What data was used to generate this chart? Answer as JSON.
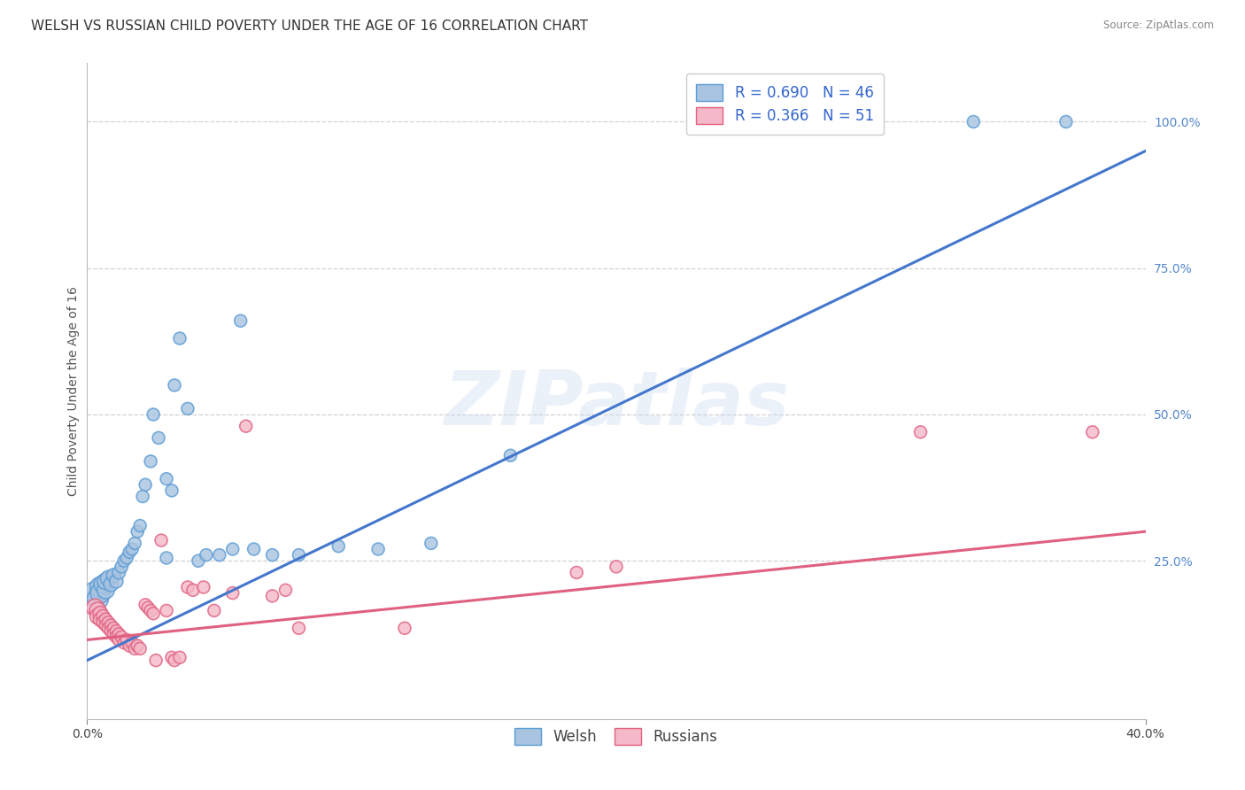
{
  "title": "WELSH VS RUSSIAN CHILD POVERTY UNDER THE AGE OF 16 CORRELATION CHART",
  "source": "Source: ZipAtlas.com",
  "ylabel": "Child Poverty Under the Age of 16",
  "xmin": 0.0,
  "xmax": 0.4,
  "ymin": -0.02,
  "ymax": 1.1,
  "xtick_positions": [
    0.0,
    0.4
  ],
  "xtick_labels": [
    "0.0%",
    "40.0%"
  ],
  "ytick_positions": [
    0.25,
    0.5,
    0.75,
    1.0
  ],
  "ytick_labels": [
    "25.0%",
    "50.0%",
    "75.0%",
    "100.0%"
  ],
  "welsh_color": "#a8c4e0",
  "welsh_edge_color": "#5b9bd5",
  "russian_color": "#f4b8c8",
  "russian_edge_color": "#e06080",
  "welsh_line_color": "#4477cc",
  "russian_line_color": "#e06080",
  "welsh_R": 0.69,
  "welsh_N": 46,
  "russian_R": 0.366,
  "russian_N": 51,
  "watermark": "ZIPatlas",
  "welsh_scatter": [
    [
      0.003,
      0.195
    ],
    [
      0.004,
      0.185
    ],
    [
      0.005,
      0.205
    ],
    [
      0.005,
      0.195
    ],
    [
      0.006,
      0.21
    ],
    [
      0.007,
      0.2
    ],
    [
      0.007,
      0.215
    ],
    [
      0.008,
      0.22
    ],
    [
      0.009,
      0.21
    ],
    [
      0.01,
      0.225
    ],
    [
      0.011,
      0.215
    ],
    [
      0.012,
      0.23
    ],
    [
      0.013,
      0.24
    ],
    [
      0.014,
      0.25
    ],
    [
      0.015,
      0.255
    ],
    [
      0.016,
      0.265
    ],
    [
      0.017,
      0.27
    ],
    [
      0.018,
      0.28
    ],
    [
      0.019,
      0.3
    ],
    [
      0.02,
      0.31
    ],
    [
      0.021,
      0.36
    ],
    [
      0.022,
      0.38
    ],
    [
      0.024,
      0.42
    ],
    [
      0.025,
      0.5
    ],
    [
      0.027,
      0.46
    ],
    [
      0.03,
      0.39
    ],
    [
      0.03,
      0.255
    ],
    [
      0.032,
      0.37
    ],
    [
      0.033,
      0.55
    ],
    [
      0.035,
      0.63
    ],
    [
      0.038,
      0.51
    ],
    [
      0.042,
      0.25
    ],
    [
      0.045,
      0.26
    ],
    [
      0.05,
      0.26
    ],
    [
      0.055,
      0.27
    ],
    [
      0.058,
      0.66
    ],
    [
      0.063,
      0.27
    ],
    [
      0.07,
      0.26
    ],
    [
      0.08,
      0.26
    ],
    [
      0.095,
      0.275
    ],
    [
      0.11,
      0.27
    ],
    [
      0.13,
      0.28
    ],
    [
      0.16,
      0.43
    ],
    [
      0.295,
      1.0
    ],
    [
      0.335,
      1.0
    ],
    [
      0.37,
      1.0
    ]
  ],
  "welsh_sizes": [
    350,
    300,
    280,
    260,
    220,
    200,
    180,
    160,
    140,
    130,
    120,
    110,
    105,
    100,
    100,
    100,
    100,
    100,
    100,
    100,
    100,
    100,
    100,
    100,
    100,
    100,
    100,
    100,
    100,
    100,
    100,
    100,
    100,
    100,
    100,
    100,
    100,
    100,
    100,
    100,
    100,
    100,
    100,
    100,
    100,
    100
  ],
  "russian_scatter": [
    [
      0.003,
      0.17
    ],
    [
      0.004,
      0.165
    ],
    [
      0.004,
      0.155
    ],
    [
      0.005,
      0.16
    ],
    [
      0.005,
      0.15
    ],
    [
      0.006,
      0.155
    ],
    [
      0.006,
      0.145
    ],
    [
      0.007,
      0.15
    ],
    [
      0.007,
      0.14
    ],
    [
      0.008,
      0.145
    ],
    [
      0.008,
      0.135
    ],
    [
      0.009,
      0.14
    ],
    [
      0.009,
      0.13
    ],
    [
      0.01,
      0.135
    ],
    [
      0.01,
      0.125
    ],
    [
      0.011,
      0.13
    ],
    [
      0.011,
      0.12
    ],
    [
      0.012,
      0.125
    ],
    [
      0.012,
      0.115
    ],
    [
      0.013,
      0.12
    ],
    [
      0.014,
      0.11
    ],
    [
      0.015,
      0.115
    ],
    [
      0.016,
      0.105
    ],
    [
      0.017,
      0.11
    ],
    [
      0.018,
      0.1
    ],
    [
      0.019,
      0.105
    ],
    [
      0.02,
      0.1
    ],
    [
      0.022,
      0.175
    ],
    [
      0.023,
      0.17
    ],
    [
      0.024,
      0.165
    ],
    [
      0.025,
      0.16
    ],
    [
      0.026,
      0.08
    ],
    [
      0.028,
      0.285
    ],
    [
      0.03,
      0.165
    ],
    [
      0.032,
      0.085
    ],
    [
      0.033,
      0.08
    ],
    [
      0.035,
      0.085
    ],
    [
      0.038,
      0.205
    ],
    [
      0.04,
      0.2
    ],
    [
      0.044,
      0.205
    ],
    [
      0.048,
      0.165
    ],
    [
      0.055,
      0.195
    ],
    [
      0.06,
      0.48
    ],
    [
      0.07,
      0.19
    ],
    [
      0.075,
      0.2
    ],
    [
      0.08,
      0.135
    ],
    [
      0.12,
      0.135
    ],
    [
      0.185,
      0.23
    ],
    [
      0.2,
      0.24
    ],
    [
      0.315,
      0.47
    ],
    [
      0.38,
      0.47
    ]
  ],
  "russian_sizes": [
    200,
    180,
    160,
    140,
    130,
    120,
    110,
    105,
    100,
    100,
    100,
    100,
    100,
    100,
    100,
    100,
    100,
    100,
    100,
    100,
    100,
    100,
    100,
    100,
    100,
    100,
    100,
    100,
    100,
    100,
    100,
    100,
    100,
    100,
    100,
    100,
    100,
    100,
    100,
    100,
    100,
    100,
    100,
    100,
    100,
    100,
    100,
    100,
    100,
    100,
    100
  ],
  "grid_color": "#cccccc",
  "background_color": "#ffffff",
  "title_fontsize": 11,
  "axis_label_fontsize": 10,
  "tick_fontsize": 10,
  "legend_fontsize": 12
}
